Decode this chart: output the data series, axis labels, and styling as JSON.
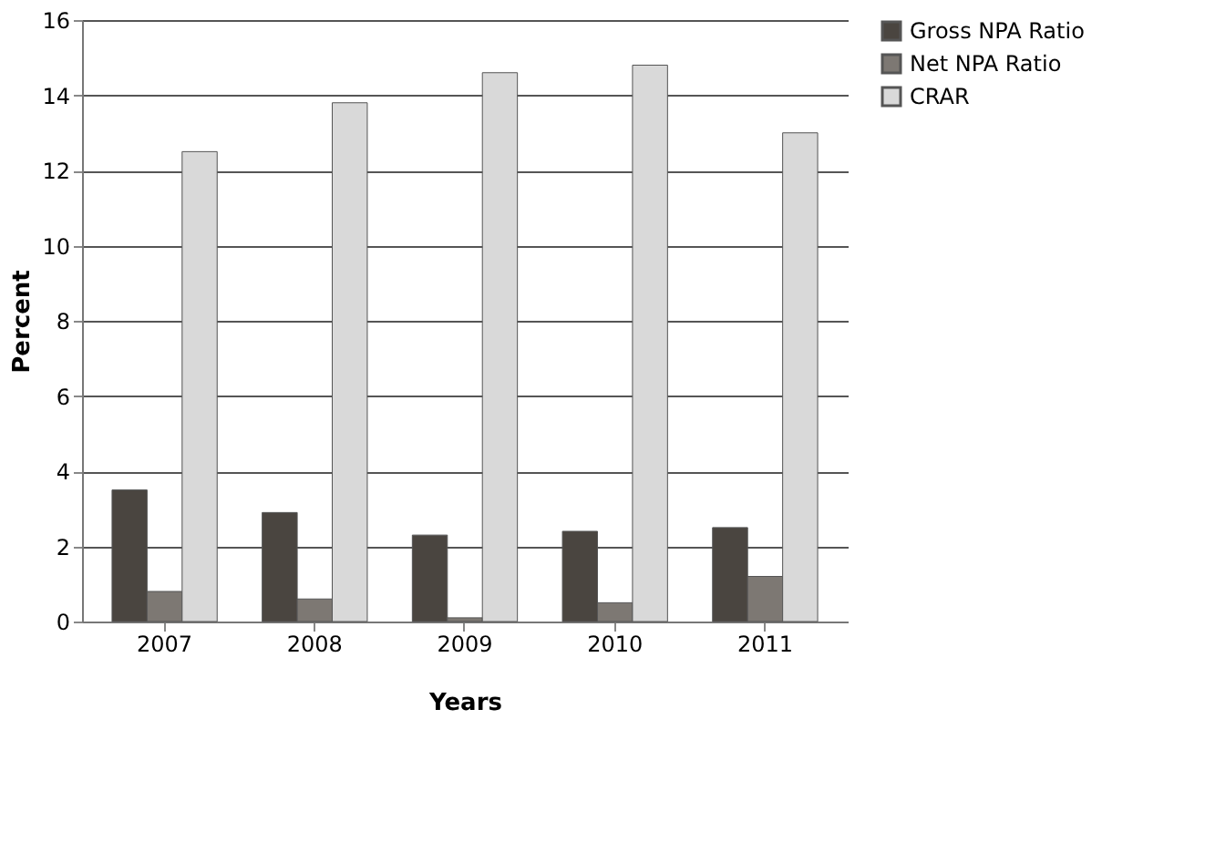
{
  "chart_data": {
    "type": "bar",
    "xlabel": "Years",
    "ylabel": "Percent",
    "categories": [
      "2007",
      "2008",
      "2009",
      "2010",
      "2011"
    ],
    "series": [
      {
        "name": "Gross NPA Ratio",
        "color": "#4a4540",
        "values": [
          3.5,
          2.9,
          2.3,
          2.4,
          2.5
        ]
      },
      {
        "name": "Net NPA Ratio",
        "color": "#7d7873",
        "values": [
          0.8,
          0.6,
          0.1,
          0.5,
          1.2
        ]
      },
      {
        "name": "CRAR",
        "color": "#d9d9d9",
        "values": [
          12.5,
          13.8,
          14.6,
          14.8,
          13.0
        ]
      }
    ],
    "ylim": [
      0,
      16
    ],
    "yticks": [
      0,
      2,
      4,
      6,
      8,
      10,
      12,
      14,
      16
    ],
    "grid": "y",
    "legend": "right"
  }
}
